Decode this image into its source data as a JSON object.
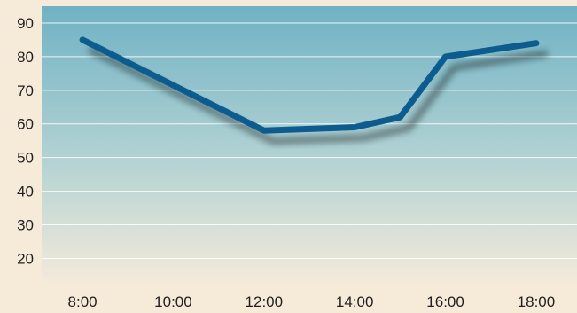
{
  "chart_data": {
    "type": "line",
    "title": "",
    "xlabel": "",
    "ylabel": "",
    "x_ticks": [
      "8:00",
      "10:00",
      "12:00",
      "14:00",
      "16:00",
      "18:00"
    ],
    "y_ticks": [
      20,
      30,
      40,
      50,
      60,
      70,
      80,
      90
    ],
    "ylim": [
      13,
      95
    ],
    "xlim_hours": [
      7.1,
      18.9
    ],
    "grid": "horizontal",
    "series": [
      {
        "x": [
          "8:00",
          "12:00",
          "14:00",
          "15:00",
          "16:00",
          "18:00"
        ],
        "values": [
          85,
          58,
          59,
          62,
          80,
          84
        ],
        "color": "#0b5b8f"
      }
    ]
  },
  "colors": {
    "page_background": "#f6ead8",
    "plot_gradient_top": "#6fb2c4",
    "plot_gradient_bottom": "#f3eadb",
    "gridline": "#ffffff",
    "line": "#0b5b8f"
  }
}
